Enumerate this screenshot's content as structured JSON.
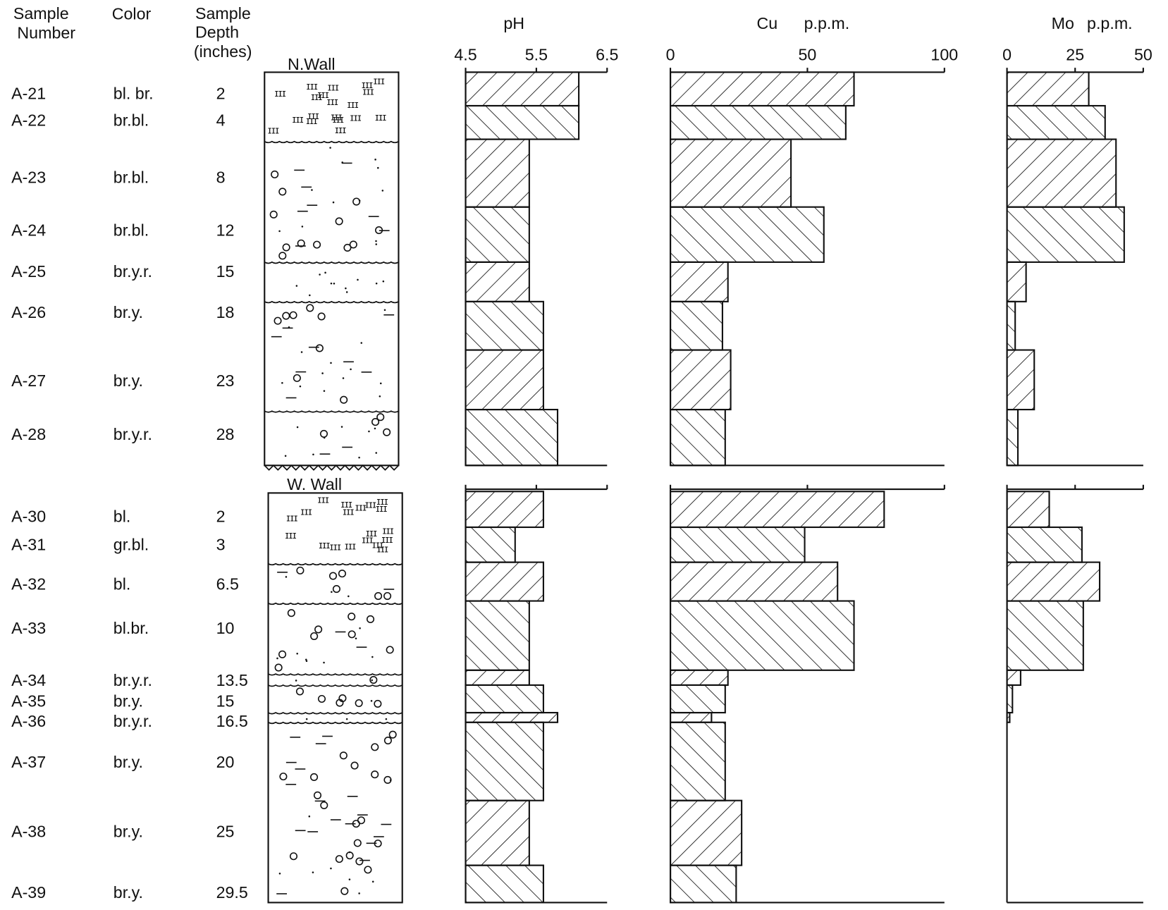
{
  "headers": {
    "sample_number": [
      "Sample",
      "Number"
    ],
    "color": "Color",
    "depth": [
      "Sample",
      "Depth",
      "(inches)"
    ]
  },
  "sections": [
    {
      "label": "N.Wall",
      "samples": [
        {
          "number": "A-21",
          "color": "bl. br.",
          "depth": 2
        },
        {
          "number": "A-22",
          "color": "br.bl.",
          "depth": 4
        },
        {
          "number": "A-23",
          "color": "br.bl.",
          "depth": 8
        },
        {
          "number": "A-24",
          "color": "br.bl.",
          "depth": 12
        },
        {
          "number": "A-25",
          "color": "br.y.r.",
          "depth": 15
        },
        {
          "number": "A-26",
          "color": "br.y.",
          "depth": 18
        },
        {
          "number": "A-27",
          "color": "br.y.",
          "depth": 23
        },
        {
          "number": "A-28",
          "color": "br.y.r.",
          "depth": 28
        }
      ]
    },
    {
      "label": "W. Wall",
      "samples": [
        {
          "number": "A-30",
          "color": "bl.",
          "depth": 2
        },
        {
          "number": "A-31",
          "color": "gr.bl.",
          "depth": 3
        },
        {
          "number": "A-32",
          "color": "bl.",
          "depth": 6.5
        },
        {
          "number": "A-33",
          "color": "bl.br.",
          "depth": 10
        },
        {
          "number": "A-34",
          "color": "br.y.r.",
          "depth": 13.5
        },
        {
          "number": "A-35",
          "color": "br.y.",
          "depth": 15
        },
        {
          "number": "A-36",
          "color": "br.y.r.",
          "depth": 16.5
        },
        {
          "number": "A-37",
          "color": "br.y.",
          "depth": 20
        },
        {
          "number": "A-38",
          "color": "br.y.",
          "depth": 25
        },
        {
          "number": "A-39",
          "color": "br.y.",
          "depth": 29.5
        }
      ]
    }
  ],
  "chart_data": [
    {
      "type": "bar",
      "title": "pH",
      "color": "#111111",
      "xlim": [
        4.5,
        6.5
      ],
      "xticks": [
        4.5,
        5.5,
        6.5
      ],
      "series": [
        {
          "values": [
            6.1,
            6.1,
            5.4,
            5.4,
            5.4,
            5.6,
            5.6,
            5.8
          ]
        },
        {
          "values": [
            5.6,
            5.2,
            5.6,
            5.4,
            5.4,
            5.6,
            5.8,
            5.6,
            5.4,
            5.6
          ]
        }
      ]
    },
    {
      "type": "bar",
      "title": "Cu",
      "unit": "p.p.m.",
      "color": "#111111",
      "xlim": [
        0,
        100
      ],
      "xticks": [
        0,
        50,
        100
      ],
      "series": [
        {
          "values": [
            67,
            64,
            44,
            56,
            21,
            19,
            22,
            20
          ]
        },
        {
          "values": [
            78,
            49,
            61,
            67,
            21,
            20,
            15,
            20,
            26,
            24
          ]
        }
      ]
    },
    {
      "type": "bar",
      "title": "Mo",
      "unit": "p.p.m.",
      "color": "#111111",
      "xlim": [
        0,
        50
      ],
      "xticks": [
        0,
        25,
        50
      ],
      "series": [
        {
          "values": [
            30,
            36,
            40,
            43,
            7,
            3,
            10,
            4
          ]
        },
        {
          "values": [
            15.5,
            27.5,
            34,
            28,
            5,
            2,
            1,
            0,
            0,
            0
          ]
        }
      ]
    }
  ]
}
